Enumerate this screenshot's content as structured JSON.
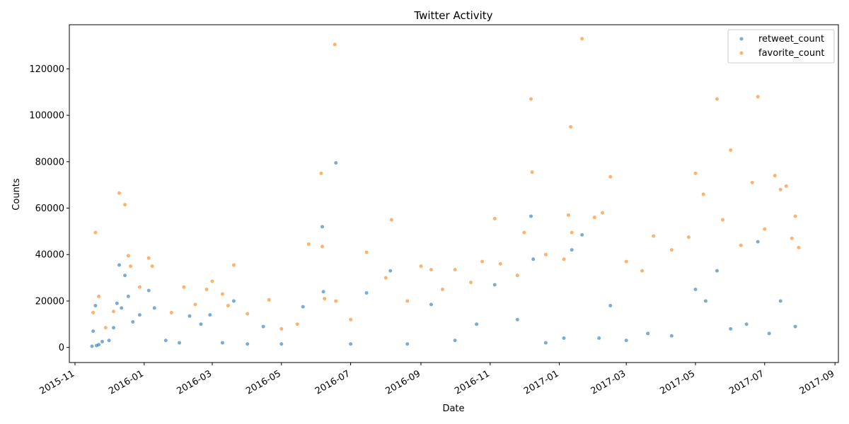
{
  "chart_data": {
    "type": "scatter",
    "title": "Twitter Activity",
    "xlabel": "Date",
    "ylabel": "Counts",
    "x_axis": "date",
    "xlim": [
      "2015-10-27",
      "2017-09-04"
    ],
    "ylim": [
      -6500,
      139000
    ],
    "x_ticks": [
      "2015-11-01",
      "2016-01-01",
      "2016-03-01",
      "2016-05-01",
      "2016-07-01",
      "2016-09-01",
      "2016-11-01",
      "2017-01-01",
      "2017-03-01",
      "2017-05-01",
      "2017-07-01",
      "2017-09-01"
    ],
    "x_tick_labels": [
      "2015-11",
      "2016-01",
      "2016-03",
      "2016-05",
      "2016-07",
      "2016-09",
      "2016-11",
      "2017-01",
      "2017-03",
      "2017-05",
      "2017-07",
      "2017-09"
    ],
    "y_ticks": [
      0,
      20000,
      40000,
      60000,
      80000,
      100000,
      120000
    ],
    "y_tick_labels": [
      "0",
      "20000",
      "40000",
      "60000",
      "80000",
      "100000",
      "120000"
    ],
    "grid": false,
    "legend_position": "top-right",
    "series": [
      {
        "name": "retweet_count",
        "color": "#1f77b4",
        "points": [
          [
            "2015-11-16",
            500
          ],
          [
            "2015-11-17",
            7000
          ],
          [
            "2015-11-19",
            18000
          ],
          [
            "2015-11-20",
            800
          ],
          [
            "2015-11-22",
            1200
          ],
          [
            "2015-11-25",
            2500
          ],
          [
            "2015-12-01",
            3000
          ],
          [
            "2015-12-05",
            8500
          ],
          [
            "2015-12-08",
            19000
          ],
          [
            "2015-12-10",
            35500
          ],
          [
            "2015-12-12",
            17000
          ],
          [
            "2015-12-15",
            31000
          ],
          [
            "2015-12-18",
            22000
          ],
          [
            "2015-12-22",
            11000
          ],
          [
            "2015-12-28",
            14000
          ],
          [
            "2016-01-05",
            24500
          ],
          [
            "2016-01-10",
            17000
          ],
          [
            "2016-01-20",
            3000
          ],
          [
            "2016-02-01",
            2000
          ],
          [
            "2016-02-10",
            13500
          ],
          [
            "2016-02-20",
            10000
          ],
          [
            "2016-02-28",
            14000
          ],
          [
            "2016-03-10",
            2000
          ],
          [
            "2016-03-20",
            20000
          ],
          [
            "2016-04-01",
            1500
          ],
          [
            "2016-04-15",
            9000
          ],
          [
            "2016-05-01",
            1500
          ],
          [
            "2016-05-20",
            17500
          ],
          [
            "2016-06-06",
            52000
          ],
          [
            "2016-06-07",
            24000
          ],
          [
            "2016-06-18",
            79500
          ],
          [
            "2016-07-01",
            1500
          ],
          [
            "2016-07-15",
            23500
          ],
          [
            "2016-08-05",
            33000
          ],
          [
            "2016-08-20",
            1500
          ],
          [
            "2016-09-10",
            18500
          ],
          [
            "2016-10-01",
            3000
          ],
          [
            "2016-10-20",
            10000
          ],
          [
            "2016-11-05",
            27000
          ],
          [
            "2016-11-25",
            12000
          ],
          [
            "2016-12-07",
            56500
          ],
          [
            "2016-12-09",
            38000
          ],
          [
            "2016-12-20",
            2000
          ],
          [
            "2017-01-05",
            4000
          ],
          [
            "2017-01-12",
            42000
          ],
          [
            "2017-01-21",
            48500
          ],
          [
            "2017-02-05",
            4000
          ],
          [
            "2017-02-15",
            18000
          ],
          [
            "2017-03-01",
            3000
          ],
          [
            "2017-03-20",
            6000
          ],
          [
            "2017-04-10",
            5000
          ],
          [
            "2017-05-01",
            25000
          ],
          [
            "2017-05-10",
            20000
          ],
          [
            "2017-05-20",
            33000
          ],
          [
            "2017-06-01",
            8000
          ],
          [
            "2017-06-15",
            10000
          ],
          [
            "2017-06-25",
            45500
          ],
          [
            "2017-07-05",
            6000
          ],
          [
            "2017-07-15",
            20000
          ],
          [
            "2017-07-28",
            9000
          ]
        ]
      },
      {
        "name": "favorite_count",
        "color": "#ff7f0e",
        "points": [
          [
            "2015-11-17",
            15000
          ],
          [
            "2015-11-19",
            49500
          ],
          [
            "2015-11-22",
            22000
          ],
          [
            "2015-11-28",
            8500
          ],
          [
            "2015-12-05",
            15500
          ],
          [
            "2015-12-10",
            66500
          ],
          [
            "2015-12-15",
            61500
          ],
          [
            "2015-12-18",
            39500
          ],
          [
            "2015-12-20",
            35000
          ],
          [
            "2015-12-28",
            26000
          ],
          [
            "2016-01-05",
            38500
          ],
          [
            "2016-01-08",
            35000
          ],
          [
            "2016-01-25",
            15000
          ],
          [
            "2016-02-05",
            26000
          ],
          [
            "2016-02-15",
            18500
          ],
          [
            "2016-02-25",
            25000
          ],
          [
            "2016-03-01",
            28500
          ],
          [
            "2016-03-10",
            23000
          ],
          [
            "2016-03-15",
            18000
          ],
          [
            "2016-03-20",
            35500
          ],
          [
            "2016-04-01",
            14500
          ],
          [
            "2016-04-20",
            20500
          ],
          [
            "2016-05-01",
            8000
          ],
          [
            "2016-05-15",
            10000
          ],
          [
            "2016-05-25",
            44500
          ],
          [
            "2016-06-05",
            75000
          ],
          [
            "2016-06-06",
            43500
          ],
          [
            "2016-06-08",
            21000
          ],
          [
            "2016-06-17",
            130500
          ],
          [
            "2016-06-18",
            20000
          ],
          [
            "2016-07-01",
            12000
          ],
          [
            "2016-07-15",
            41000
          ],
          [
            "2016-08-01",
            30000
          ],
          [
            "2016-08-06",
            55000
          ],
          [
            "2016-08-20",
            20000
          ],
          [
            "2016-09-01",
            35000
          ],
          [
            "2016-09-10",
            33500
          ],
          [
            "2016-09-20",
            25000
          ],
          [
            "2016-10-01",
            33500
          ],
          [
            "2016-10-15",
            28000
          ],
          [
            "2016-10-25",
            37000
          ],
          [
            "2016-11-05",
            55500
          ],
          [
            "2016-11-10",
            36000
          ],
          [
            "2016-11-25",
            31000
          ],
          [
            "2016-12-01",
            49500
          ],
          [
            "2016-12-07",
            107000
          ],
          [
            "2016-12-08",
            75500
          ],
          [
            "2016-12-20",
            40000
          ],
          [
            "2017-01-05",
            38000
          ],
          [
            "2017-01-09",
            57000
          ],
          [
            "2017-01-11",
            95000
          ],
          [
            "2017-01-12",
            49500
          ],
          [
            "2017-01-21",
            133000
          ],
          [
            "2017-02-01",
            56000
          ],
          [
            "2017-02-08",
            58000
          ],
          [
            "2017-02-15",
            73500
          ],
          [
            "2017-03-01",
            37000
          ],
          [
            "2017-03-15",
            33000
          ],
          [
            "2017-03-25",
            48000
          ],
          [
            "2017-04-10",
            42000
          ],
          [
            "2017-04-25",
            47500
          ],
          [
            "2017-05-01",
            75000
          ],
          [
            "2017-05-08",
            66000
          ],
          [
            "2017-05-20",
            107000
          ],
          [
            "2017-05-25",
            55000
          ],
          [
            "2017-06-01",
            85000
          ],
          [
            "2017-06-10",
            44000
          ],
          [
            "2017-06-20",
            71000
          ],
          [
            "2017-06-25",
            108000
          ],
          [
            "2017-07-01",
            51000
          ],
          [
            "2017-07-10",
            74000
          ],
          [
            "2017-07-15",
            68000
          ],
          [
            "2017-07-20",
            69500
          ],
          [
            "2017-07-25",
            47000
          ],
          [
            "2017-07-28",
            56500
          ],
          [
            "2017-07-31",
            43000
          ]
        ]
      }
    ]
  }
}
